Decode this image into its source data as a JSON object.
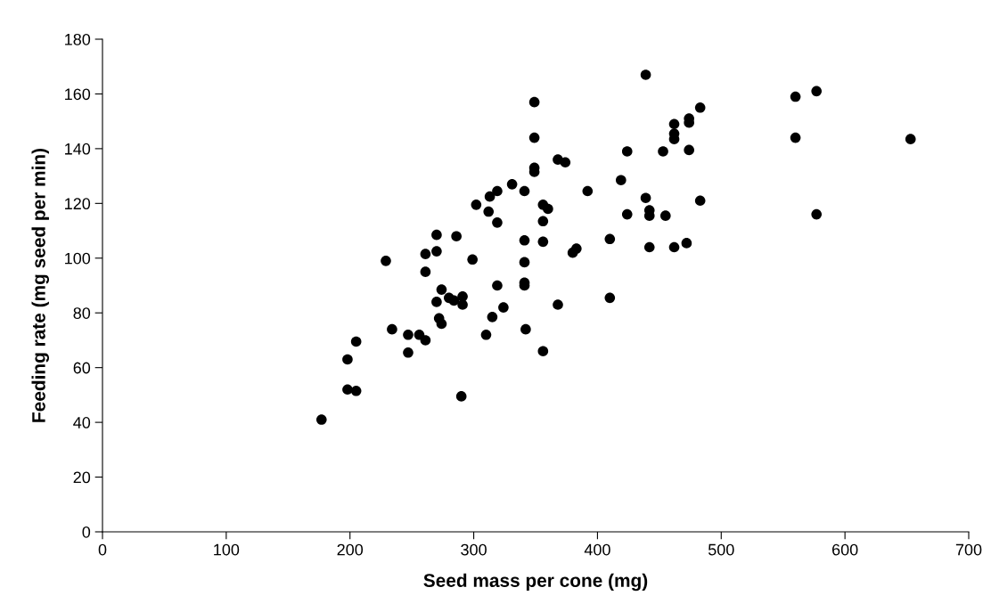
{
  "chart_data": {
    "type": "scatter",
    "xlabel": "Seed mass per cone (mg)",
    "ylabel": "Feeding rate (mg seed per min)",
    "x": [
      177,
      198,
      198,
      205,
      205,
      229,
      234,
      247,
      247,
      256,
      261,
      261,
      261,
      270,
      270,
      270,
      272,
      274,
      274,
      280,
      284,
      286,
      290,
      291,
      291,
      299,
      302,
      310,
      312,
      313,
      315,
      319,
      319,
      319,
      324,
      331,
      341,
      341,
      341,
      341,
      341,
      342,
      349,
      349,
      349,
      349,
      356,
      356,
      356,
      356,
      360,
      368,
      368,
      374,
      380,
      383,
      392,
      410,
      410,
      419,
      424,
      424,
      439,
      439,
      442,
      442,
      442,
      453,
      455,
      462,
      462,
      462,
      462,
      472,
      474,
      474,
      474,
      483,
      483,
      560,
      560,
      577,
      577,
      653
    ],
    "values": [
      41,
      63,
      52,
      51.5,
      69.5,
      99,
      74,
      72,
      65.5,
      72,
      70,
      95,
      101.5,
      108.5,
      102.5,
      84,
      78,
      76,
      88.5,
      85.5,
      84.5,
      108,
      49.5,
      86,
      83,
      99.5,
      119.5,
      72,
      117,
      122.5,
      78.5,
      124.5,
      90,
      113,
      82,
      127,
      124.5,
      106.5,
      98.5,
      91,
      90,
      74,
      157,
      144,
      133,
      131.5,
      66,
      119.5,
      113.5,
      106,
      118,
      136,
      83,
      135,
      102,
      103.5,
      124.5,
      107,
      85.5,
      128.5,
      139,
      116,
      167,
      122,
      117.5,
      115.5,
      104,
      139,
      115.5,
      149,
      145.5,
      143.5,
      104,
      105.5,
      151,
      149.5,
      139.5,
      155,
      121,
      159,
      144,
      161,
      116,
      143.5
    ],
    "color": "#000000",
    "marker": "circle",
    "xlim": [
      0,
      700
    ],
    "xticks": [
      0,
      100,
      200,
      300,
      400,
      500,
      600,
      700
    ],
    "ylim": [
      0,
      180
    ],
    "yticks": [
      0,
      20,
      40,
      60,
      80,
      100,
      120,
      140,
      160,
      180
    ],
    "grid": false
  }
}
